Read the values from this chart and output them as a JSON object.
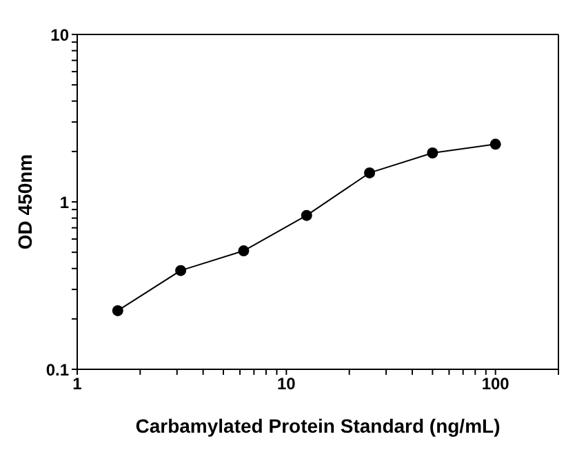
{
  "chart_data": {
    "type": "line",
    "xlabel": "Carbamylated Protein Standard (ng/mL)",
    "ylabel": "OD 450nm",
    "x": [
      1.5625,
      3.125,
      6.25,
      12.5,
      25,
      50,
      100
    ],
    "series": [
      {
        "color": "#000000",
        "values": [
          0.224,
          0.389,
          0.51,
          0.83,
          1.49,
          1.96,
          2.21
        ]
      }
    ],
    "log": "xy",
    "xlim": [
      1,
      200
    ],
    "ylim": [
      0.1,
      10
    ],
    "xticks": [
      1,
      {
        "value": 2,
        "label": null
      },
      {
        "value": 3,
        "label": null
      },
      {
        "value": 4,
        "label": null
      },
      {
        "value": 5,
        "label": null
      },
      {
        "value": 6,
        "label": null
      },
      {
        "value": 7,
        "label": null
      },
      {
        "value": 8,
        "label": null
      },
      {
        "value": 9,
        "label": null
      },
      10,
      {
        "value": 20,
        "label": null
      },
      {
        "value": 30,
        "label": null
      },
      {
        "value": 40,
        "label": null
      },
      {
        "value": 50,
        "label": null
      },
      {
        "value": 60,
        "label": null
      },
      {
        "value": 70,
        "label": null
      },
      {
        "value": 80,
        "label": null
      },
      {
        "value": 90,
        "label": null
      },
      100,
      {
        "value": 200,
        "label": null
      }
    ],
    "yticks": [
      0.1,
      {
        "value": 0.2,
        "label": null
      },
      {
        "value": 0.3,
        "label": null
      },
      {
        "value": 0.4,
        "label": null
      },
      {
        "value": 0.5,
        "label": null
      },
      {
        "value": 0.6,
        "label": null
      },
      {
        "value": 0.7,
        "label": null
      },
      {
        "value": 0.8,
        "label": null
      },
      {
        "value": 0.9,
        "label": null
      },
      1,
      {
        "value": 2,
        "label": null
      },
      {
        "value": 3,
        "label": null
      },
      {
        "value": 4,
        "label": null
      },
      {
        "value": 5,
        "label": null
      },
      {
        "value": 6,
        "label": null
      },
      {
        "value": 7,
        "label": null
      },
      {
        "value": 8,
        "label": null
      },
      {
        "value": 9,
        "label": null
      },
      10
    ],
    "grid": false,
    "legend": false,
    "marker": "circle",
    "line_style": "solid"
  }
}
